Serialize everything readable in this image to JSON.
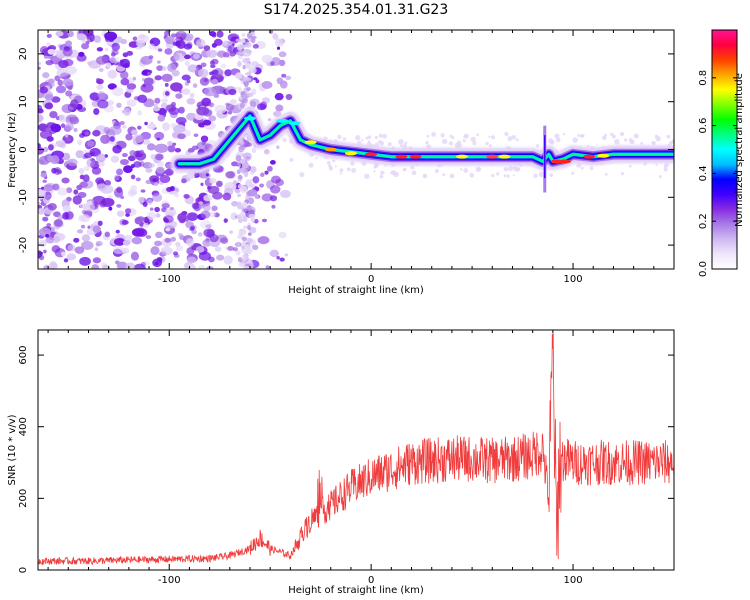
{
  "title": "S174.2025.354.01.31.G23",
  "chart_data": [
    {
      "type": "heatmap",
      "name": "spectrogram",
      "xlabel": "Height of straight line (km)",
      "ylabel": "Frequency (Hz)",
      "xlim": [
        -165,
        150
      ],
      "ylim": [
        -25,
        25
      ],
      "xticks": [
        -100,
        0,
        100
      ],
      "yticks": [
        -20,
        -10,
        0,
        10,
        20
      ],
      "colorbar": {
        "label": "Normalized spectral amplitude",
        "range": [
          0,
          1
        ],
        "ticks": [
          0.0,
          0.2,
          0.4,
          0.6,
          0.8
        ],
        "colors": [
          "#ffffff",
          "#f0e6fb",
          "#d0b8f0",
          "#a77ce8",
          "#8a2be2",
          "#3f00ff",
          "#0000ff",
          "#00bfff",
          "#00ffff",
          "#00ff80",
          "#00ff00",
          "#80ff00",
          "#ffff00",
          "#ffa500",
          "#ff4000",
          "#ff0040",
          "#ff1493"
        ]
      },
      "ridge": {
        "x": [
          -95,
          -85,
          -78,
          -72,
          -66,
          -60,
          -55,
          -50,
          -45,
          -40,
          -35,
          -30,
          -20,
          -10,
          0,
          10,
          20,
          40,
          60,
          80,
          85,
          88,
          90,
          95,
          100,
          110,
          120,
          130,
          150
        ],
        "y": [
          -3,
          -3,
          -2,
          1,
          4,
          7,
          2,
          3,
          5,
          6,
          2,
          1,
          0,
          -0.5,
          -1,
          -1.5,
          -1.5,
          -1.5,
          -1.5,
          -1.5,
          -2.5,
          -1,
          -2.5,
          -2,
          -1,
          -1.5,
          -1,
          -1,
          -1
        ]
      },
      "noise_region_x": [
        -165,
        -40
      ]
    },
    {
      "type": "line",
      "name": "snr",
      "xlabel": "Height of straight line (km)",
      "ylabel": "SNR (10 * v/v)",
      "xlim": [
        -165,
        150
      ],
      "ylim": [
        0,
        670
      ],
      "xticks": [
        -100,
        0,
        100
      ],
      "yticks": [
        0,
        200,
        400,
        600
      ],
      "color": "#f03c3c",
      "series": [
        {
          "name": "SNR",
          "x": [
            -165,
            -140,
            -120,
            -100,
            -80,
            -70,
            -60,
            -55,
            -50,
            -45,
            -40,
            -35,
            -30,
            -25,
            -20,
            -10,
            0,
            10,
            20,
            30,
            40,
            50,
            60,
            70,
            80,
            85,
            88,
            90,
            92,
            93,
            95,
            100,
            110,
            120,
            130,
            140,
            150
          ],
          "y": [
            25,
            25,
            28,
            30,
            32,
            40,
            60,
            90,
            60,
            50,
            40,
            90,
            140,
            160,
            180,
            230,
            260,
            280,
            300,
            305,
            310,
            310,
            305,
            310,
            320,
            340,
            200,
            620,
            40,
            300,
            310,
            300,
            300,
            300,
            300,
            300,
            300
          ]
        }
      ]
    }
  ]
}
